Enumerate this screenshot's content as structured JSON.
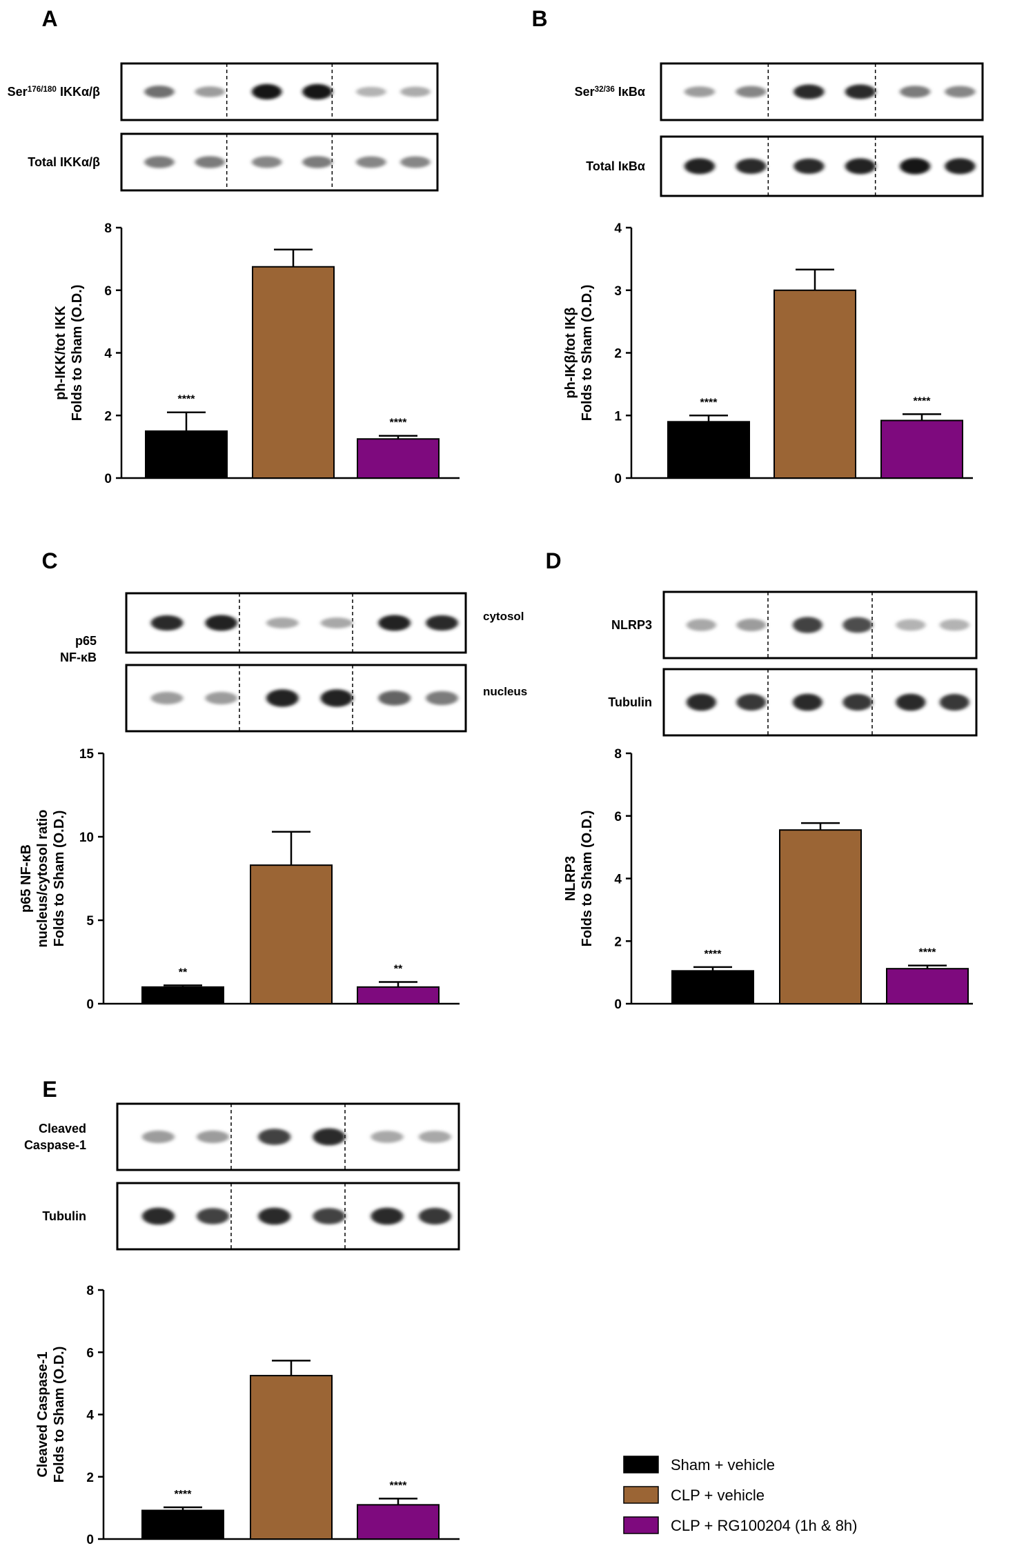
{
  "colors": {
    "sham": "#000000",
    "clp": "#9b6535",
    "rg": "#7e0a7e"
  },
  "legend": {
    "items": [
      {
        "label": "Sham + vehicle",
        "color": "#000000"
      },
      {
        "label": "CLP + vehicle",
        "color": "#9b6535"
      },
      {
        "label": "CLP + RG100204 (1h & 8h)",
        "color": "#7e0a7e"
      }
    ]
  },
  "panels": [
    {
      "letter": "A",
      "blots": [
        {
          "label": "Ser176/180 IKKα/β",
          "side_label": "",
          "intensity": [
            0.55,
            0.35,
            0.95,
            0.95,
            0.25,
            0.28
          ]
        },
        {
          "label": "Total IKKα/β",
          "side_label": "",
          "intensity": [
            0.5,
            0.5,
            0.45,
            0.5,
            0.45,
            0.45
          ]
        }
      ],
      "group_label": ""
    },
    {
      "letter": "B",
      "blots": [
        {
          "label": "Ser32/36 IκBα",
          "side_label": "",
          "intensity": [
            0.35,
            0.45,
            0.85,
            0.85,
            0.5,
            0.45
          ]
        },
        {
          "label": "Total IκBα",
          "side_label": "",
          "intensity": [
            0.9,
            0.85,
            0.85,
            0.9,
            0.95,
            0.9
          ]
        }
      ],
      "group_label": ""
    },
    {
      "letter": "C",
      "blots": [
        {
          "label": "",
          "side_label": "cytosol",
          "intensity": [
            0.85,
            0.9,
            0.3,
            0.3,
            0.9,
            0.85
          ]
        },
        {
          "label": "",
          "side_label": "nucleus",
          "intensity": [
            0.35,
            0.35,
            0.9,
            0.9,
            0.6,
            0.5
          ]
        }
      ],
      "group_label": "p65\nNF-κB"
    },
    {
      "letter": "D",
      "blots": [
        {
          "label": "NLRP3",
          "side_label": "",
          "intensity": [
            0.3,
            0.35,
            0.75,
            0.7,
            0.25,
            0.25
          ]
        },
        {
          "label": "Tubulin",
          "side_label": "",
          "intensity": [
            0.85,
            0.8,
            0.85,
            0.8,
            0.85,
            0.8
          ]
        }
      ],
      "group_label": ""
    },
    {
      "letter": "E",
      "blots": [
        {
          "label": "Cleaved\nCaspase-1",
          "side_label": "",
          "intensity": [
            0.35,
            0.35,
            0.75,
            0.85,
            0.3,
            0.3
          ]
        },
        {
          "label": "Tubulin",
          "side_label": "",
          "intensity": [
            0.85,
            0.75,
            0.85,
            0.75,
            0.85,
            0.8
          ]
        }
      ],
      "group_label": ""
    }
  ],
  "chart_data": [
    {
      "panel": "A",
      "type": "bar",
      "categories": [
        "Sham + vehicle",
        "CLP + vehicle",
        "CLP + RG100204 (1h & 8h)"
      ],
      "values": [
        1.5,
        6.75,
        1.25
      ],
      "errors": [
        0.6,
        0.55,
        0.1
      ],
      "annotations": [
        "****",
        "",
        "****"
      ],
      "ylabel": "ph-IKK/tot IKK\nFolds to Sham (O.D.)",
      "ylim": [
        0,
        8
      ],
      "yticks": [
        0,
        2,
        4,
        6,
        8
      ]
    },
    {
      "panel": "B",
      "type": "bar",
      "categories": [
        "Sham + vehicle",
        "CLP + vehicle",
        "CLP + RG100204 (1h & 8h)"
      ],
      "values": [
        0.9,
        3.0,
        0.92
      ],
      "errors": [
        0.1,
        0.33,
        0.1
      ],
      "annotations": [
        "****",
        "",
        "****"
      ],
      "ylabel": "ph-IKβ/tot IKβ\nFolds to Sham (O.D.)",
      "ylim": [
        0,
        4
      ],
      "yticks": [
        0,
        1,
        2,
        3,
        4
      ]
    },
    {
      "panel": "C",
      "type": "bar",
      "categories": [
        "Sham + vehicle",
        "CLP + vehicle",
        "CLP + RG100204 (1h & 8h)"
      ],
      "values": [
        1.0,
        8.3,
        1.0
      ],
      "errors": [
        0.1,
        2.0,
        0.3
      ],
      "annotations": [
        "**",
        "",
        "**"
      ],
      "ylabel": "p65 NF-κB\nnucleus/cytosol ratio\nFolds to Sham (O.D.)",
      "ylim": [
        0,
        15
      ],
      "yticks": [
        0,
        5,
        10,
        15
      ]
    },
    {
      "panel": "D",
      "type": "bar",
      "categories": [
        "Sham + vehicle",
        "CLP + vehicle",
        "CLP + RG100204 (1h & 8h)"
      ],
      "values": [
        1.05,
        5.55,
        1.12
      ],
      "errors": [
        0.12,
        0.22,
        0.1
      ],
      "annotations": [
        "****",
        "",
        "****"
      ],
      "ylabel": "NLRP3\nFolds to Sham (O.D.)",
      "ylim": [
        0,
        8
      ],
      "yticks": [
        0,
        2,
        4,
        6,
        8
      ]
    },
    {
      "panel": "E",
      "type": "bar",
      "categories": [
        "Sham + vehicle",
        "CLP + vehicle",
        "CLP + RG100204 (1h & 8h)"
      ],
      "values": [
        0.92,
        5.25,
        1.1
      ],
      "errors": [
        0.1,
        0.48,
        0.2
      ],
      "annotations": [
        "****",
        "",
        "****"
      ],
      "ylabel": "Cleaved Caspase-1\nFolds to Sham (O.D.)",
      "ylim": [
        0,
        8
      ],
      "yticks": [
        0,
        2,
        4,
        6,
        8
      ]
    }
  ]
}
